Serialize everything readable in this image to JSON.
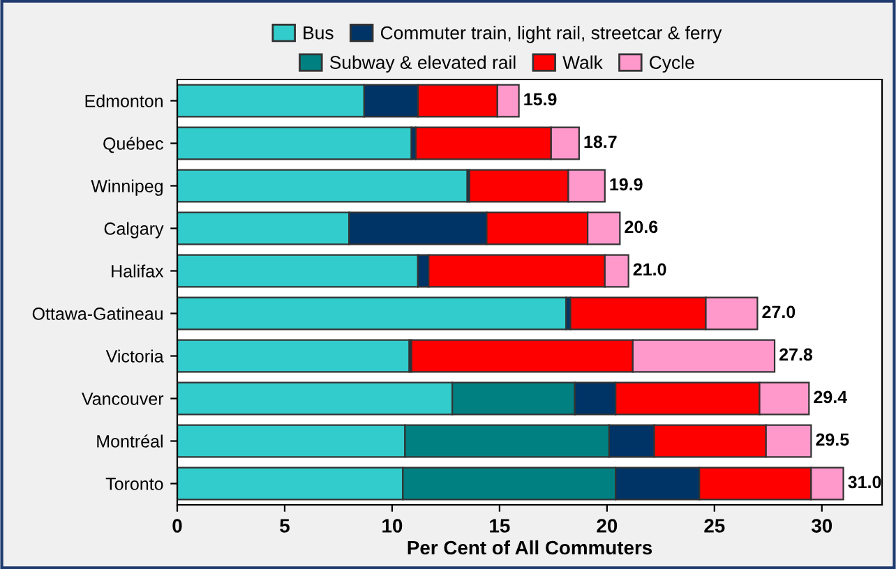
{
  "chart_data": {
    "type": "bar",
    "orientation": "horizontal",
    "stacked": true,
    "xlabel": "Per Cent of All Commuters",
    "categories": [
      "Edmonton",
      "Québec",
      "Winnipeg",
      "Calgary",
      "Halifax",
      "Ottawa-Gatineau",
      "Victoria",
      "Vancouver",
      "Montréal",
      "Toronto"
    ],
    "series": [
      {
        "name": "Bus",
        "color": "#33cccc",
        "values": [
          8.7,
          10.9,
          13.5,
          8.0,
          11.2,
          18.1,
          10.8,
          12.8,
          10.6,
          10.5
        ]
      },
      {
        "name": "Subway & elevated rail",
        "color": "#008080",
        "values": [
          null,
          null,
          null,
          null,
          null,
          null,
          null,
          5.7,
          9.5,
          9.9
        ]
      },
      {
        "name": "Commuter train, light rail, streetcar & ferry",
        "color": "#003366",
        "values": [
          2.5,
          0.2,
          0.1,
          6.4,
          0.5,
          0.2,
          0.1,
          1.9,
          2.1,
          3.9
        ]
      },
      {
        "name": "Walk",
        "color": "#ff0000",
        "values": [
          3.7,
          6.3,
          4.6,
          4.7,
          8.2,
          6.3,
          10.3,
          6.7,
          5.2,
          5.2
        ]
      },
      {
        "name": "Cycle",
        "color": "#ff99cc",
        "values": [
          1.0,
          1.3,
          1.7,
          1.5,
          1.1,
          2.4,
          6.6,
          2.3,
          2.1,
          1.5
        ]
      }
    ],
    "totals": [
      "15.9",
      "18.7",
      "19.9",
      "20.6",
      "21.0",
      "27.0",
      "27.8",
      "29.4",
      "29.5",
      "31.0"
    ],
    "xlim": [
      0,
      32.8
    ],
    "xticks": [
      0,
      5,
      10,
      15,
      20,
      25,
      30
    ],
    "grid": false,
    "legend": "top"
  }
}
